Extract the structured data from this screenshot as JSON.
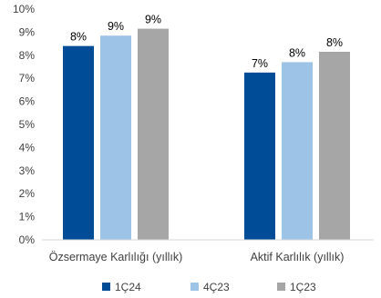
{
  "chart_data": {
    "type": "bar",
    "title": "",
    "xlabel": "",
    "ylabel": "",
    "categories": [
      "Özsermaye Karlılığı (yıllık)",
      "Aktif Karlılık (yıllık)"
    ],
    "series": [
      {
        "name": "1Ç24",
        "values": [
          8.4,
          7.25
        ],
        "labels": [
          "8%",
          "7%"
        ],
        "color": "#004C97"
      },
      {
        "name": "4Ç23",
        "values": [
          8.85,
          7.7
        ],
        "labels": [
          "9%",
          "8%"
        ],
        "color": "#9DC3E6"
      },
      {
        "name": "1Ç23",
        "values": [
          9.15,
          8.15
        ],
        "labels": [
          "9%",
          "8%"
        ],
        "color": "#A6A6A6"
      }
    ],
    "ylim": [
      0,
      10
    ],
    "yticks": [
      "0%",
      "1%",
      "2%",
      "3%",
      "4%",
      "5%",
      "6%",
      "7%",
      "8%",
      "9%",
      "10%"
    ],
    "grid": false,
    "legend_position": "bottom"
  }
}
